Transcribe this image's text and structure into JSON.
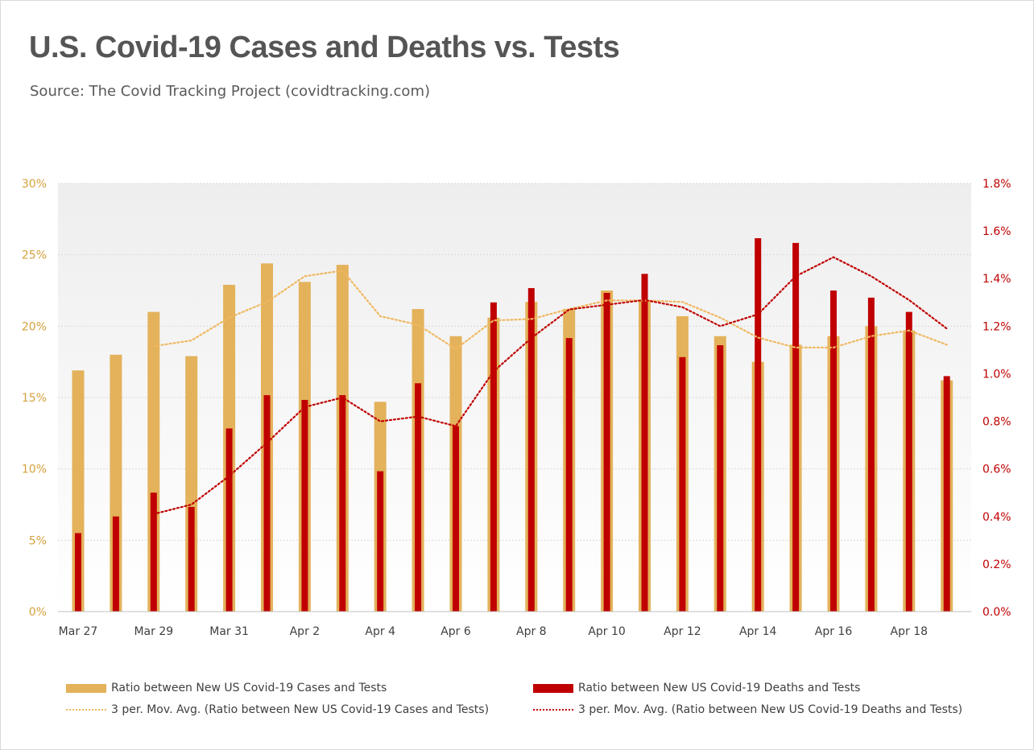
{
  "title": "U.S. Covid-19 Cases and Deaths vs. Tests",
  "subtitle": "Source: The Covid Tracking Project (covidtracking.com)",
  "colors": {
    "cases": "#e3b25b",
    "deaths": "#c00000",
    "cases_ma": "#f0b860",
    "deaths_ma": "#c00000",
    "left_axis": "#d6a13d",
    "right_axis": "#c00000"
  },
  "chart_data": {
    "type": "bar",
    "categories": [
      "Mar 27",
      "Mar 28",
      "Mar 29",
      "Mar 30",
      "Mar 31",
      "Apr 1",
      "Apr 2",
      "Apr 3",
      "Apr 4",
      "Apr 5",
      "Apr 6",
      "Apr 7",
      "Apr 8",
      "Apr 9",
      "Apr 10",
      "Apr 11",
      "Apr 12",
      "Apr 13",
      "Apr 14",
      "Apr 15",
      "Apr 16",
      "Apr 17",
      "Apr 18",
      "Apr 19"
    ],
    "x_tick_labels": [
      "Mar 27",
      "Mar 29",
      "Mar 31",
      "Apr 2",
      "Apr 4",
      "Apr 6",
      "Apr 8",
      "Apr 10",
      "Apr 12",
      "Apr 14",
      "Apr 16",
      "Apr 18"
    ],
    "left_axis": {
      "ticks": [
        "0%",
        "5%",
        "10%",
        "15%",
        "20%",
        "25%",
        "30%"
      ],
      "ylim": [
        0,
        30
      ]
    },
    "right_axis": {
      "ticks": [
        "0.0%",
        "0.2%",
        "0.4%",
        "0.6%",
        "0.8%",
        "1.0%",
        "1.2%",
        "1.4%",
        "1.6%",
        "1.8%"
      ],
      "ylim": [
        0,
        1.8
      ]
    },
    "series": [
      {
        "name": "Ratio between New US Covid-19 Cases and Tests",
        "kind": "bar",
        "axis": "left",
        "values": [
          16.9,
          18.0,
          21.0,
          17.9,
          22.9,
          24.4,
          23.1,
          24.3,
          14.7,
          21.2,
          19.3,
          20.6,
          21.7,
          21.2,
          22.5,
          21.8,
          20.7,
          19.3,
          17.5,
          18.7,
          19.3,
          20.0,
          19.7,
          16.2
        ]
      },
      {
        "name": "Ratio between New US Covid-19 Deaths and Tests",
        "kind": "bar",
        "axis": "right",
        "values": [
          0.33,
          0.4,
          0.5,
          0.44,
          0.77,
          0.91,
          0.89,
          0.91,
          0.59,
          0.96,
          0.78,
          1.3,
          1.36,
          1.15,
          1.34,
          1.42,
          1.07,
          1.12,
          1.57,
          1.55,
          1.35,
          1.32,
          1.26,
          0.99
        ]
      },
      {
        "name": "3 per. Mov. Avg. (Ratio between New US Covid-19 Cases and Tests)",
        "kind": "line",
        "axis": "left",
        "values": [
          null,
          null,
          18.6,
          19.0,
          20.6,
          21.7,
          23.5,
          23.9,
          20.7,
          20.1,
          18.4,
          20.4,
          20.5,
          21.2,
          21.8,
          21.8,
          21.7,
          20.6,
          19.2,
          18.5,
          18.5,
          19.3,
          19.7,
          18.7
        ]
      },
      {
        "name": "3 per. Mov. Avg. (Ratio between New US Covid-19 Deaths and Tests)",
        "kind": "line",
        "axis": "right",
        "values": [
          null,
          null,
          0.41,
          0.45,
          0.57,
          0.71,
          0.86,
          0.9,
          0.8,
          0.82,
          0.78,
          1.01,
          1.15,
          1.27,
          1.29,
          1.31,
          1.28,
          1.2,
          1.25,
          1.41,
          1.49,
          1.41,
          1.31,
          1.19
        ]
      }
    ],
    "grid": true,
    "legend_position": "bottom"
  }
}
